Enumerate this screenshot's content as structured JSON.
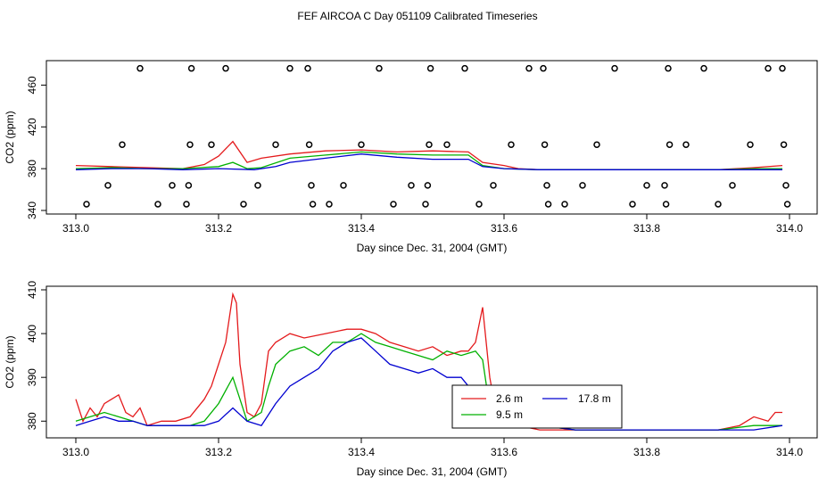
{
  "title": "FEF AIRCOA C  Day 051109  Calibrated Timeseries",
  "colors": {
    "s1": "#e41a1c",
    "s2": "#00b000",
    "s3": "#0000d0",
    "axis": "#000000"
  },
  "chart_data": [
    {
      "type": "line",
      "xlabel": "Day since Dec. 31, 2004 (GMT)",
      "ylabel": "CO2 (ppm)",
      "xlim": [
        313.0,
        314.0
      ],
      "ylim": [
        340,
        480
      ],
      "xticks": [
        "313.0",
        "313.2",
        "313.4",
        "313.6",
        "313.8",
        "314.0"
      ],
      "yticks": [
        "340",
        "380",
        "420",
        "460"
      ],
      "series": [
        {
          "name": "2.6 m",
          "x": [
            313.0,
            313.05,
            313.1,
            313.15,
            313.18,
            313.2,
            313.22,
            313.24,
            313.26,
            313.3,
            313.35,
            313.4,
            313.45,
            313.5,
            313.55,
            313.57,
            313.6,
            313.62,
            313.65,
            313.7,
            313.8,
            313.9,
            313.95,
            313.99
          ],
          "values": [
            383,
            382,
            381,
            380,
            384,
            392,
            406,
            386,
            390,
            394,
            397,
            398,
            396,
            397,
            396,
            386,
            383,
            380,
            379,
            379,
            379,
            379,
            381,
            383
          ]
        },
        {
          "name": "9.5 m",
          "x": [
            313.0,
            313.05,
            313.1,
            313.15,
            313.2,
            313.22,
            313.24,
            313.26,
            313.3,
            313.35,
            313.4,
            313.45,
            313.5,
            313.55,
            313.57,
            313.6,
            313.65,
            313.7,
            313.8,
            313.9,
            313.95,
            313.99
          ],
          "values": [
            380,
            381,
            380,
            380,
            382,
            386,
            380,
            381,
            390,
            393,
            396,
            394,
            393,
            393,
            383,
            380,
            379,
            379,
            379,
            379,
            380,
            380
          ]
        },
        {
          "name": "17.8 m",
          "x": [
            313.0,
            313.05,
            313.1,
            313.15,
            313.2,
            313.25,
            313.28,
            313.3,
            313.35,
            313.4,
            313.45,
            313.5,
            313.55,
            313.57,
            313.6,
            313.65,
            313.7,
            313.8,
            313.9,
            313.99
          ],
          "values": [
            379,
            380,
            380,
            379,
            380,
            379,
            382,
            386,
            390,
            394,
            391,
            389,
            389,
            382,
            380,
            379,
            379,
            379,
            379,
            379
          ]
        }
      ],
      "markers": [
        {
          "x": 313.015,
          "y": 346
        },
        {
          "x": 313.045,
          "y": 364
        },
        {
          "x": 313.065,
          "y": 403
        },
        {
          "x": 313.09,
          "y": 476
        },
        {
          "x": 313.115,
          "y": 346
        },
        {
          "x": 313.135,
          "y": 364
        },
        {
          "x": 313.155,
          "y": 346
        },
        {
          "x": 313.158,
          "y": 364
        },
        {
          "x": 313.16,
          "y": 403
        },
        {
          "x": 313.162,
          "y": 476
        },
        {
          "x": 313.19,
          "y": 403
        },
        {
          "x": 313.21,
          "y": 476
        },
        {
          "x": 313.235,
          "y": 346
        },
        {
          "x": 313.255,
          "y": 364
        },
        {
          "x": 313.28,
          "y": 403
        },
        {
          "x": 313.3,
          "y": 476
        },
        {
          "x": 313.325,
          "y": 476
        },
        {
          "x": 313.327,
          "y": 403
        },
        {
          "x": 313.33,
          "y": 364
        },
        {
          "x": 313.332,
          "y": 346
        },
        {
          "x": 313.355,
          "y": 346
        },
        {
          "x": 313.375,
          "y": 364
        },
        {
          "x": 313.4,
          "y": 403
        },
        {
          "x": 313.425,
          "y": 476
        },
        {
          "x": 313.445,
          "y": 346
        },
        {
          "x": 313.47,
          "y": 364
        },
        {
          "x": 313.49,
          "y": 346
        },
        {
          "x": 313.493,
          "y": 364
        },
        {
          "x": 313.495,
          "y": 403
        },
        {
          "x": 313.497,
          "y": 476
        },
        {
          "x": 313.52,
          "y": 403
        },
        {
          "x": 313.545,
          "y": 476
        },
        {
          "x": 313.565,
          "y": 346
        },
        {
          "x": 313.585,
          "y": 364
        },
        {
          "x": 313.61,
          "y": 403
        },
        {
          "x": 313.635,
          "y": 476
        },
        {
          "x": 313.655,
          "y": 476
        },
        {
          "x": 313.657,
          "y": 403
        },
        {
          "x": 313.66,
          "y": 364
        },
        {
          "x": 313.662,
          "y": 346
        },
        {
          "x": 313.685,
          "y": 346
        },
        {
          "x": 313.71,
          "y": 364
        },
        {
          "x": 313.73,
          "y": 403
        },
        {
          "x": 313.755,
          "y": 476
        },
        {
          "x": 313.78,
          "y": 346
        },
        {
          "x": 313.8,
          "y": 364
        },
        {
          "x": 313.825,
          "y": 364
        },
        {
          "x": 313.827,
          "y": 346
        },
        {
          "x": 313.83,
          "y": 476
        },
        {
          "x": 313.832,
          "y": 403
        },
        {
          "x": 313.855,
          "y": 403
        },
        {
          "x": 313.88,
          "y": 476
        },
        {
          "x": 313.9,
          "y": 346
        },
        {
          "x": 313.92,
          "y": 364
        },
        {
          "x": 313.945,
          "y": 403
        },
        {
          "x": 313.97,
          "y": 476
        },
        {
          "x": 313.99,
          "y": 476
        },
        {
          "x": 313.992,
          "y": 403
        },
        {
          "x": 313.995,
          "y": 364
        },
        {
          "x": 313.997,
          "y": 346
        }
      ]
    },
    {
      "type": "line",
      "xlabel": "Day since Dec. 31, 2004 (GMT)",
      "ylabel": "CO2 (ppm)",
      "xlim": [
        313.0,
        314.0
      ],
      "ylim": [
        377,
        410
      ],
      "xticks": [
        "313.0",
        "313.2",
        "313.4",
        "313.6",
        "313.8",
        "314.0"
      ],
      "yticks": [
        "380",
        "390",
        "400",
        "410"
      ],
      "legend": {
        "position": "lower-right-center",
        "entries": [
          "2.6 m",
          "17.8 m",
          "9.5 m"
        ]
      },
      "series": [
        {
          "name": "2.6 m",
          "x": [
            313.0,
            313.01,
            313.02,
            313.03,
            313.04,
            313.05,
            313.06,
            313.07,
            313.08,
            313.09,
            313.1,
            313.12,
            313.14,
            313.16,
            313.18,
            313.19,
            313.2,
            313.21,
            313.22,
            313.225,
            313.23,
            313.24,
            313.25,
            313.26,
            313.27,
            313.28,
            313.3,
            313.32,
            313.35,
            313.38,
            313.4,
            313.42,
            313.44,
            313.46,
            313.48,
            313.5,
            313.52,
            313.54,
            313.55,
            313.56,
            313.57,
            313.58,
            313.59,
            313.6,
            313.62,
            313.65,
            313.7,
            313.8,
            313.9,
            313.93,
            313.95,
            313.97,
            313.98,
            313.99
          ],
          "values": [
            385,
            380,
            383,
            381,
            384,
            385,
            386,
            382,
            381,
            383,
            379,
            380,
            380,
            381,
            385,
            388,
            393,
            398,
            409,
            407,
            393,
            382,
            381,
            384,
            396,
            398,
            400,
            399,
            400,
            401,
            401,
            400,
            398,
            397,
            396,
            397,
            395,
            396,
            396,
            398,
            406,
            390,
            381,
            380,
            379,
            378,
            378,
            378,
            378,
            379,
            381,
            380,
            382,
            382
          ]
        },
        {
          "name": "9.5 m",
          "x": [
            313.0,
            313.02,
            313.04,
            313.06,
            313.08,
            313.1,
            313.12,
            313.14,
            313.16,
            313.18,
            313.2,
            313.22,
            313.23,
            313.24,
            313.26,
            313.27,
            313.28,
            313.3,
            313.32,
            313.34,
            313.36,
            313.38,
            313.4,
            313.42,
            313.44,
            313.46,
            313.48,
            313.5,
            313.52,
            313.54,
            313.56,
            313.57,
            313.58,
            313.6,
            313.65,
            313.7,
            313.8,
            313.9,
            313.95,
            313.99
          ],
          "values": [
            380,
            381,
            382,
            381,
            380,
            379,
            379,
            379,
            379,
            380,
            384,
            390,
            385,
            380,
            382,
            388,
            393,
            396,
            397,
            395,
            398,
            398,
            400,
            398,
            397,
            396,
            395,
            394,
            396,
            395,
            396,
            394,
            383,
            380,
            379,
            378,
            378,
            378,
            379,
            379
          ]
        },
        {
          "name": "17.8 m",
          "x": [
            313.0,
            313.02,
            313.04,
            313.06,
            313.08,
            313.1,
            313.12,
            313.14,
            313.16,
            313.18,
            313.2,
            313.22,
            313.24,
            313.26,
            313.28,
            313.3,
            313.32,
            313.34,
            313.36,
            313.38,
            313.4,
            313.42,
            313.44,
            313.46,
            313.48,
            313.5,
            313.52,
            313.54,
            313.56,
            313.57,
            313.58,
            313.6,
            313.65,
            313.7,
            313.8,
            313.9,
            313.95,
            313.99
          ],
          "values": [
            379,
            380,
            381,
            380,
            380,
            379,
            379,
            379,
            379,
            379,
            380,
            383,
            380,
            379,
            384,
            388,
            390,
            392,
            396,
            398,
            399,
            396,
            393,
            392,
            391,
            392,
            390,
            390,
            386,
            381,
            380,
            380,
            379,
            378,
            378,
            378,
            378,
            379
          ]
        }
      ]
    }
  ]
}
